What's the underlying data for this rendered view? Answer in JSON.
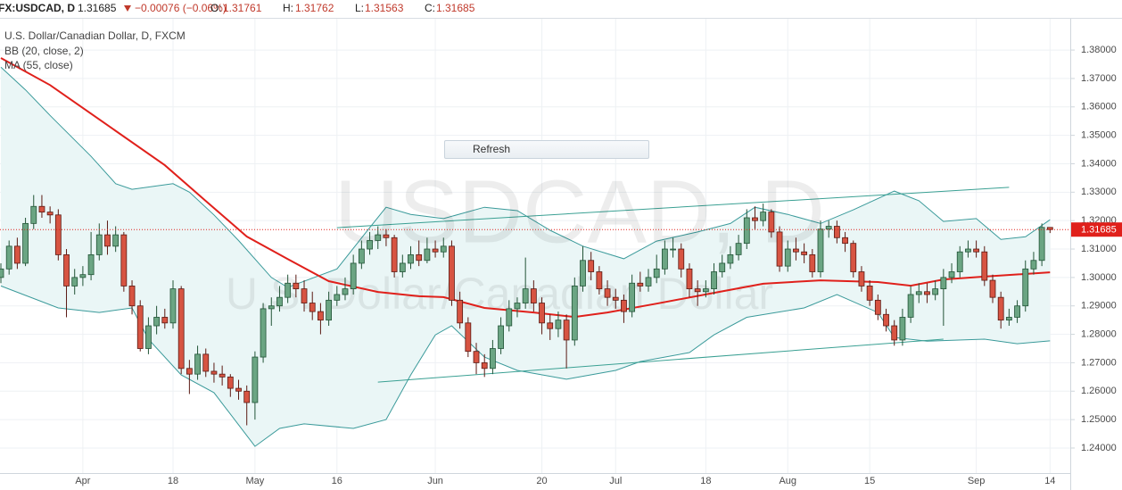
{
  "header": {
    "symbol": "FX:USDCAD, D",
    "last": "1.31685",
    "change": "−0.00076 (−0.06%)",
    "ohlc": [
      {
        "label": "O:",
        "value": "1.31761"
      },
      {
        "label": "H:",
        "value": "1.31762"
      },
      {
        "label": "L:",
        "value": "1.31563"
      },
      {
        "label": "C:",
        "value": "1.31685"
      }
    ]
  },
  "refresh_button": "Refresh",
  "chart_data": {
    "type": "candlestick",
    "title": "U.S. Dollar/Canadian Dollar, D, FXCM",
    "watermark": "USDCAD, D",
    "watermark_subtitle": "U.S. Dollar/Canadian Dollar",
    "categories": [
      null,
      null,
      null,
      null,
      null,
      null,
      null,
      null,
      null,
      null,
      "Apr",
      null,
      null,
      null,
      null,
      null,
      null,
      null,
      null,
      null,
      null,
      "18",
      null,
      null,
      null,
      null,
      null,
      null,
      null,
      null,
      null,
      "May",
      null,
      null,
      null,
      null,
      null,
      null,
      null,
      null,
      null,
      "16",
      null,
      null,
      null,
      null,
      null,
      null,
      null,
      null,
      null,
      null,
      null,
      "Jun",
      null,
      null,
      null,
      null,
      null,
      null,
      null,
      null,
      null,
      null,
      null,
      null,
      "20",
      null,
      null,
      null,
      null,
      null,
      null,
      null,
      null,
      "Jul",
      null,
      null,
      null,
      null,
      null,
      null,
      null,
      null,
      null,
      null,
      "18",
      null,
      null,
      null,
      null,
      null,
      null,
      null,
      null,
      null,
      "Aug",
      null,
      null,
      null,
      null,
      null,
      null,
      null,
      null,
      null,
      "15",
      null,
      null,
      null,
      null,
      null,
      null,
      null,
      null,
      null,
      null,
      null,
      null,
      "Sep",
      null,
      null,
      null,
      null,
      null,
      null,
      null,
      null,
      "14"
    ],
    "open": [
      1.3,
      1.303,
      1.311,
      1.305,
      1.319,
      1.325,
      1.323,
      1.322,
      1.308,
      1.297,
      1.3,
      1.301,
      1.308,
      1.315,
      1.311,
      1.315,
      1.297,
      1.29,
      1.275,
      1.283,
      1.286,
      1.284,
      1.296,
      1.268,
      1.266,
      1.273,
      1.267,
      1.266,
      1.265,
      1.261,
      1.26,
      1.256,
      1.272,
      1.289,
      1.29,
      1.293,
      1.298,
      1.296,
      1.291,
      1.288,
      1.285,
      1.292,
      1.294,
      1.296,
      1.305,
      1.31,
      1.313,
      1.315,
      1.314,
      1.302,
      1.305,
      1.308,
      1.306,
      1.31,
      1.309,
      1.311,
      1.292,
      1.284,
      1.274,
      1.27,
      1.268,
      1.275,
      1.283,
      1.289,
      1.291,
      1.296,
      1.291,
      1.284,
      1.282,
      1.285,
      1.278,
      1.297,
      1.306,
      1.302,
      1.296,
      1.293,
      1.292,
      1.288,
      1.298,
      1.297,
      1.3,
      1.303,
      1.31,
      1.31,
      1.303,
      1.296,
      1.295,
      1.296,
      1.302,
      1.305,
      1.308,
      1.312,
      1.321,
      1.32,
      1.323,
      1.316,
      1.304,
      1.31,
      1.309,
      1.308,
      1.302,
      1.317,
      1.318,
      1.314,
      1.312,
      1.302,
      1.297,
      1.292,
      1.287,
      1.283,
      1.278,
      1.286,
      1.294,
      1.295,
      1.294,
      1.296,
      1.3,
      1.302,
      1.309,
      1.31,
      1.309,
      1.299,
      1.293,
      1.285,
      1.286,
      1.29,
      1.303,
      1.306,
      1.31761
    ],
    "high": [
      1.305,
      1.313,
      1.314,
      1.321,
      1.329,
      1.329,
      1.325,
      1.324,
      1.31,
      1.303,
      1.304,
      1.316,
      1.319,
      1.32,
      1.318,
      1.316,
      1.299,
      1.292,
      1.286,
      1.29,
      1.289,
      1.299,
      1.297,
      1.271,
      1.276,
      1.275,
      1.27,
      1.269,
      1.266,
      1.264,
      1.262,
      1.274,
      1.291,
      1.293,
      1.297,
      1.301,
      1.301,
      1.299,
      1.295,
      1.291,
      1.295,
      1.297,
      1.3,
      1.308,
      1.313,
      1.316,
      1.318,
      1.317,
      1.315,
      1.308,
      1.311,
      1.313,
      1.314,
      1.313,
      1.314,
      1.313,
      1.295,
      1.286,
      1.277,
      1.273,
      1.278,
      1.286,
      1.292,
      1.293,
      1.307,
      1.299,
      1.293,
      1.287,
      1.288,
      1.287,
      1.3,
      1.311,
      1.309,
      1.304,
      1.299,
      1.296,
      1.294,
      1.301,
      1.302,
      1.303,
      1.308,
      1.313,
      1.314,
      1.312,
      1.305,
      1.299,
      1.299,
      1.305,
      1.308,
      1.311,
      1.315,
      1.324,
      1.325,
      1.326,
      1.324,
      1.318,
      1.313,
      1.314,
      1.312,
      1.31,
      1.32,
      1.32,
      1.32,
      1.316,
      1.313,
      1.304,
      1.299,
      1.294,
      1.289,
      1.285,
      1.289,
      1.297,
      1.298,
      1.298,
      1.299,
      1.303,
      1.305,
      1.311,
      1.313,
      1.313,
      1.311,
      1.301,
      1.295,
      1.289,
      1.292,
      1.306,
      1.309,
      1.319,
      1.31762
    ],
    "low": [
      1.298,
      1.301,
      1.303,
      1.304,
      1.317,
      1.321,
      1.319,
      1.306,
      1.286,
      1.294,
      1.297,
      1.299,
      1.306,
      1.308,
      1.309,
      1.295,
      1.287,
      1.274,
      1.273,
      1.28,
      1.282,
      1.282,
      1.266,
      1.259,
      1.264,
      1.265,
      1.263,
      1.262,
      1.258,
      1.257,
      1.248,
      1.25,
      1.27,
      1.283,
      1.288,
      1.291,
      1.293,
      1.288,
      1.285,
      1.28,
      1.283,
      1.29,
      1.292,
      1.294,
      1.303,
      1.308,
      1.31,
      1.311,
      1.3,
      1.3,
      1.303,
      1.304,
      1.305,
      1.307,
      1.307,
      1.29,
      1.282,
      1.272,
      1.266,
      1.265,
      1.266,
      1.273,
      1.281,
      1.286,
      1.289,
      1.288,
      1.28,
      1.278,
      1.279,
      1.268,
      1.276,
      1.295,
      1.299,
      1.294,
      1.29,
      1.289,
      1.284,
      1.286,
      1.295,
      1.295,
      1.298,
      1.301,
      1.307,
      1.3,
      1.293,
      1.29,
      1.293,
      1.294,
      1.3,
      1.303,
      1.306,
      1.31,
      1.317,
      1.318,
      1.314,
      1.302,
      1.302,
      1.306,
      1.305,
      1.3,
      1.3,
      1.314,
      1.312,
      1.309,
      1.3,
      1.295,
      1.29,
      1.285,
      1.281,
      1.276,
      1.276,
      1.284,
      1.291,
      1.291,
      1.292,
      1.283,
      1.298,
      1.3,
      1.307,
      1.307,
      1.297,
      1.291,
      1.282,
      1.283,
      1.284,
      1.288,
      1.301,
      1.304,
      1.31563
    ],
    "close": [
      1.303,
      1.311,
      1.305,
      1.319,
      1.325,
      1.323,
      1.322,
      1.308,
      1.297,
      1.3,
      1.301,
      1.308,
      1.315,
      1.311,
      1.315,
      1.297,
      1.29,
      1.275,
      1.283,
      1.286,
      1.284,
      1.296,
      1.268,
      1.266,
      1.273,
      1.267,
      1.266,
      1.265,
      1.261,
      1.26,
      1.256,
      1.272,
      1.289,
      1.29,
      1.293,
      1.298,
      1.296,
      1.291,
      1.288,
      1.285,
      1.292,
      1.294,
      1.296,
      1.305,
      1.31,
      1.313,
      1.315,
      1.314,
      1.302,
      1.305,
      1.308,
      1.306,
      1.31,
      1.309,
      1.311,
      1.292,
      1.284,
      1.274,
      1.27,
      1.268,
      1.275,
      1.283,
      1.289,
      1.291,
      1.296,
      1.291,
      1.284,
      1.282,
      1.285,
      1.278,
      1.297,
      1.306,
      1.302,
      1.296,
      1.293,
      1.292,
      1.288,
      1.298,
      1.297,
      1.3,
      1.303,
      1.31,
      1.31,
      1.303,
      1.296,
      1.295,
      1.296,
      1.302,
      1.305,
      1.308,
      1.312,
      1.321,
      1.32,
      1.323,
      1.316,
      1.304,
      1.31,
      1.309,
      1.308,
      1.302,
      1.317,
      1.318,
      1.314,
      1.312,
      1.302,
      1.297,
      1.292,
      1.287,
      1.283,
      1.278,
      1.286,
      1.294,
      1.295,
      1.294,
      1.296,
      1.3,
      1.302,
      1.309,
      1.31,
      1.309,
      1.299,
      1.293,
      1.285,
      1.286,
      1.29,
      1.303,
      1.306,
      1.31761,
      1.31685
    ],
    "up_color": "#6ba583",
    "down_color": "#d75442",
    "up_border": "#225437",
    "down_border": "#5b1a13",
    "indicators": [
      {
        "name": "BB (20, close, 2)",
        "color": "#3a9a9a",
        "fill_color": "#eaf6f6",
        "upper": {
          "x": [
            0,
            3,
            6,
            11,
            14,
            16,
            21,
            23,
            26,
            29,
            33,
            35,
            41,
            45,
            47,
            50,
            54,
            59,
            63,
            67,
            71,
            76,
            80,
            85,
            89,
            92,
            96,
            100,
            104,
            109,
            112,
            115,
            119,
            122,
            125,
            128
          ],
          "values": [
            1.374,
            1.366,
            1.357,
            1.3426,
            1.333,
            1.331,
            1.333,
            1.33,
            1.322,
            1.313,
            1.3,
            1.2965,
            1.303,
            1.3175,
            1.3247,
            1.3222,
            1.3207,
            1.3247,
            1.3235,
            1.3166,
            1.311,
            1.3066,
            1.3128,
            1.316,
            1.319,
            1.3247,
            1.3222,
            1.319,
            1.3238,
            1.3304,
            1.327,
            1.3197,
            1.3207,
            1.3134,
            1.3143,
            1.3203
          ]
        },
        "lower": {
          "x": [
            0,
            7,
            12,
            16,
            18,
            22,
            26,
            31,
            34,
            37,
            43,
            47,
            50,
            53,
            55,
            59,
            63,
            69,
            75,
            78,
            84,
            87,
            91,
            98,
            102,
            107,
            109,
            113,
            120,
            124,
            128
          ],
          "values": [
            1.297,
            1.2893,
            1.2877,
            1.2893,
            1.2783,
            1.2657,
            1.2595,
            1.2406,
            1.2469,
            1.2485,
            1.2469,
            1.25,
            1.2657,
            1.2798,
            1.283,
            1.272,
            1.2673,
            1.2642,
            1.2673,
            1.2704,
            1.2736,
            1.2798,
            1.286,
            1.2893,
            1.294,
            1.2877,
            1.2789,
            1.2776,
            1.2783,
            1.2767,
            1.2777
          ]
        }
      },
      {
        "name": "MA (55, close)",
        "color": "#e0201b",
        "x": [
          0,
          6,
          13,
          20,
          25,
          30,
          35,
          40,
          46,
          51,
          54,
          59,
          65,
          70,
          74,
          80,
          87,
          93,
          100,
          107,
          111,
          115,
          120,
          128
        ],
        "values": [
          1.3772,
          1.3677,
          1.3536,
          1.3395,
          1.3269,
          1.3144,
          1.3065,
          1.2987,
          1.2949,
          1.2934,
          1.2931,
          1.2893,
          1.2877,
          1.2861,
          1.2877,
          1.2908,
          1.2946,
          1.2978,
          1.299,
          1.2984,
          1.2971,
          1.2993,
          1.3003,
          1.3018
        ]
      }
    ],
    "trend_color": "#3aa093",
    "trend_lines": [
      {
        "x": [
          41,
          123
        ],
        "values": [
          1.3175,
          1.3317
        ]
      },
      {
        "x": [
          46,
          115
        ],
        "values": [
          1.2632,
          1.2783
        ]
      }
    ],
    "last_price": 1.31685,
    "last_price_color": "#e0201b",
    "ylim": [
      1.2312,
      1.3907
    ],
    "yticks": [
      {
        "value": 1.24,
        "label": "1.24000"
      },
      {
        "value": 1.25,
        "label": "1.25000"
      },
      {
        "value": 1.26,
        "label": "1.26000"
      },
      {
        "value": 1.27,
        "label": "1.27000"
      },
      {
        "value": 1.28,
        "label": "1.28000"
      },
      {
        "value": 1.29,
        "label": "1.29000"
      },
      {
        "value": 1.3,
        "label": "1.30000"
      },
      {
        "value": 1.31,
        "label": "1.31000"
      },
      {
        "value": 1.32,
        "label": "1.32000"
      },
      {
        "value": 1.33,
        "label": "1.33000"
      },
      {
        "value": 1.34,
        "label": "1.34000"
      },
      {
        "value": 1.35,
        "label": "1.35000"
      },
      {
        "value": 1.36,
        "label": "1.36000"
      },
      {
        "value": 1.37,
        "label": "1.37000"
      },
      {
        "value": 1.38,
        "label": "1.38000"
      }
    ],
    "grid": true
  }
}
